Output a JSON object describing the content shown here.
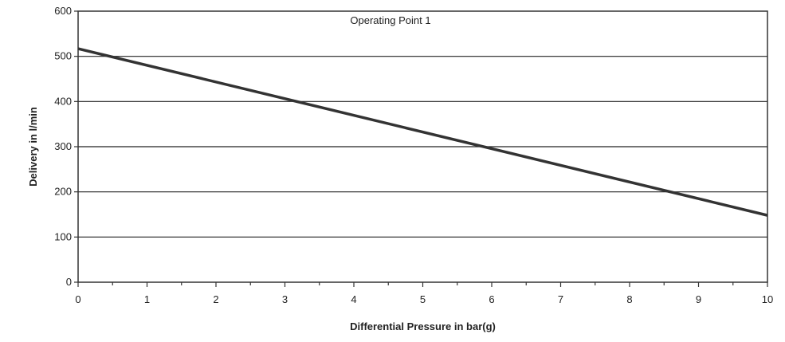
{
  "chart_data": {
    "type": "line",
    "title": "Operating Point 1",
    "xlabel": "Differential Pressure in bar(g)",
    "ylabel": "Delivery in l/min",
    "xlim": [
      0,
      10
    ],
    "ylim": [
      0,
      600
    ],
    "x_ticks": [
      "0",
      "1",
      "2",
      "3",
      "4",
      "5",
      "6",
      "7",
      "8",
      "9",
      "10"
    ],
    "y_ticks": [
      "0",
      "100",
      "200",
      "300",
      "400",
      "500",
      "600"
    ],
    "grid": "horizontal",
    "legend": "none",
    "series": [
      {
        "x": [
          0,
          10
        ],
        "values": [
          517,
          148
        ]
      }
    ],
    "colors": {
      "line": "#333333",
      "grid": "#222222",
      "frame": "#333333"
    }
  }
}
